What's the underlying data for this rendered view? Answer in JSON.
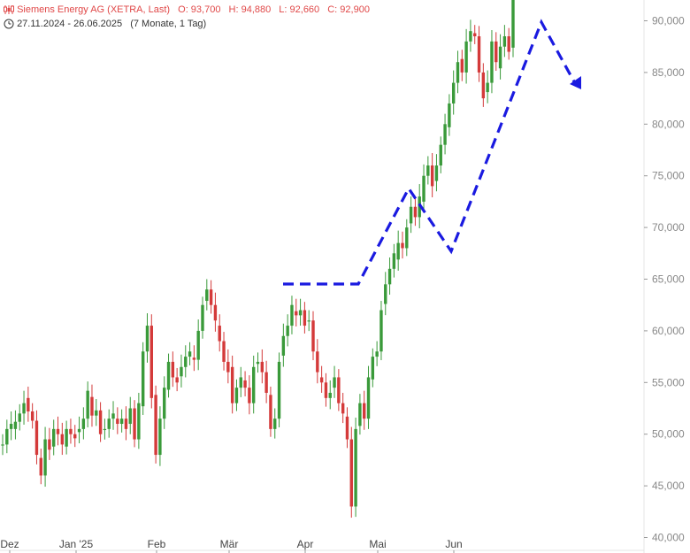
{
  "header": {
    "title": "Siemens Energy AG (XETRA, Last)",
    "open": "O: 93,700",
    "high": "H: 94,880",
    "low": "L: 92,660",
    "close": "C: 92,900",
    "range": "27.11.2024 - 26.06.2025",
    "period": "(7 Monate, 1 Tag)",
    "colors": {
      "title": "#e04848",
      "up": "#3a9a3a",
      "down": "#d43a3a",
      "arrow": "#1a1ae0"
    }
  },
  "chart_data": {
    "type": "candlestick",
    "y_axis": {
      "position": "right",
      "ticks": [
        40000,
        45000,
        50000,
        55000,
        60000,
        65000,
        70000,
        75000,
        80000,
        85000,
        90000
      ],
      "tick_labels": [
        "40,000",
        "45,000",
        "50,000",
        "55,000",
        "60,000",
        "65,000",
        "70,000",
        "75,000",
        "80,000",
        "85,000",
        "90,000"
      ],
      "ylim": [
        39.5,
        93.5
      ]
    },
    "x_axis": {
      "tick_labels": [
        "Dez",
        "Jan '25",
        "Feb",
        "Mär",
        "Apr",
        "Mai",
        "Jun"
      ]
    },
    "grid": false,
    "closes": [
      49.0,
      50.5,
      51.0,
      51.2,
      52.0,
      53.0,
      52.2,
      51.3,
      48.0,
      46.0,
      49.5,
      48.5,
      50.5,
      50.0,
      49.0,
      50.5,
      50.0,
      49.6,
      50.5,
      51.5,
      54.2,
      51.8,
      52.3,
      50.0,
      50.5,
      51.5,
      52.0,
      51.0,
      51.5,
      50.5,
      52.5,
      49.5,
      53.0,
      58.0,
      60.5,
      53.5,
      48.0,
      51.5,
      54.5,
      57.0,
      55.5,
      55.0,
      56.5,
      57.5,
      58.0,
      57.2,
      60.0,
      62.5,
      64.0,
      62.5,
      61.0,
      59.0,
      57.0,
      56.0,
      53.0,
      54.5,
      55.5,
      54.5,
      53.0,
      56.5,
      57.0,
      56.0,
      54.0,
      50.5,
      51.5,
      57.0,
      59.5,
      60.5,
      62.5,
      61.5,
      62.0,
      60.5,
      61.0,
      58.0,
      56.0,
      55.0,
      53.5,
      54.0,
      55.5,
      53.0,
      52.0,
      49.5,
      43.0,
      50.5,
      53.0,
      51.5,
      55.5,
      57.5,
      58.0,
      62.0,
      64.5,
      66.0,
      67.5,
      68.5,
      68.0,
      70.0,
      72.0,
      71.0,
      73.0,
      75.0,
      76.0,
      74.0,
      76.0,
      78.0,
      80.0,
      82.0,
      84.0,
      86.0,
      85.0,
      88.0,
      89.0,
      88.5,
      85.0,
      82.5,
      84.0,
      88.0,
      86.0,
      87.5,
      88.5,
      87.0,
      92.9
    ]
  },
  "annotation": {
    "type": "projection-arrow",
    "style": "dashed",
    "color": "#1a1ae0"
  }
}
